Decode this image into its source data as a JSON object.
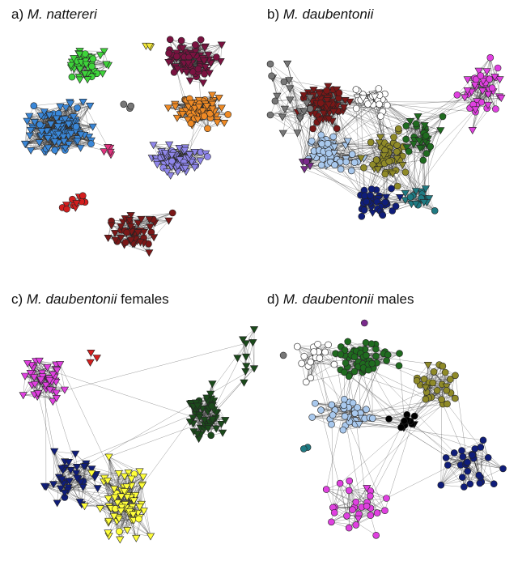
{
  "panels": [
    {
      "id": "a",
      "prefix": "a) ",
      "species": "M. nattereri",
      "suffix": ""
    },
    {
      "id": "b",
      "prefix": "b) ",
      "species": "M. daubentonii",
      "suffix": ""
    },
    {
      "id": "c",
      "prefix": "c) ",
      "species": "M. daubentonii",
      "suffix": " females"
    },
    {
      "id": "d",
      "prefix": "d) ",
      "species": "M. daubentonii",
      "suffix": " males"
    }
  ],
  "colors": {
    "blue": "#3a87d8",
    "green": "#3ed43a",
    "yellow": "#f0e63a",
    "grey": "#777777",
    "maroon": "#7a1240",
    "orange": "#ef8a25",
    "lavender": "#8f86ea",
    "pink": "#e0337e",
    "red": "#d31e1e",
    "darkred": "#7a1717",
    "magenta": "#e040e0",
    "white": "#ffffff",
    "olive": "#8f8a28",
    "darkgreen": "#1f6b1f",
    "lightblue": "#a9c9ee",
    "navy": "#0f1d7a",
    "teal": "#1f7a82",
    "purple": "#7a2a8c",
    "black": "#000000",
    "brightyellow": "#ffff3a",
    "forest": "#1b4a1b"
  },
  "node_shapes": [
    "circle",
    "triangle"
  ]
}
